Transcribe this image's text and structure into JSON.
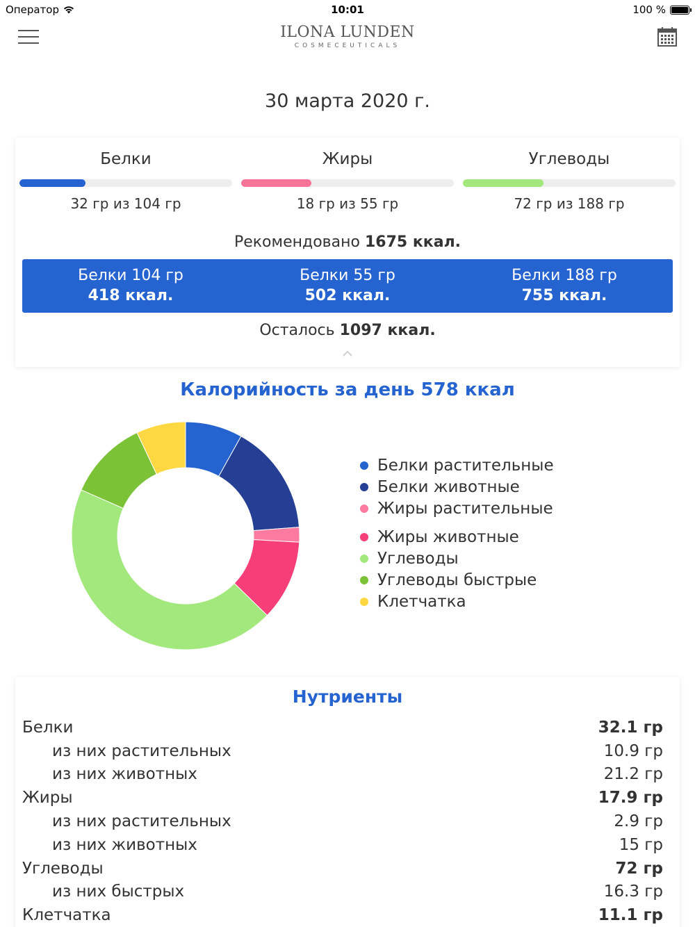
{
  "status_bar": {
    "carrier": "Оператор",
    "time": "10:01",
    "battery": "100 %"
  },
  "header": {
    "logo_main": "ILONA LUNDEN",
    "logo_sub": "COSMECEUTICALS"
  },
  "date": "30 марта 2020 г.",
  "macros": [
    {
      "label": "Белки",
      "amount": "32 гр из 104 гр",
      "progress": 0.31,
      "color": "#2563d0"
    },
    {
      "label": "Жиры",
      "amount": "18 гр из 55 гр",
      "progress": 0.33,
      "color": "#f87399"
    },
    {
      "label": "Углеводы",
      "amount": "72 гр из 188 гр",
      "progress": 0.38,
      "color": "#a2e87c"
    }
  ],
  "recommended": {
    "prefix": "Рекомендовано",
    "value": "1675 ккал."
  },
  "targets": [
    {
      "line1": "Белки 104 гр",
      "line2": "418 ккал."
    },
    {
      "line1": "Белки 55 гр",
      "line2": "502 ккал."
    },
    {
      "line1": "Белки 188 гр",
      "line2": "755 ккал."
    }
  ],
  "remaining": {
    "prefix": "Осталось",
    "value": "1097 ккал."
  },
  "day_calories_title": "Калорийность за день 578 ккал",
  "chart_data": {
    "type": "pie",
    "donut": true,
    "categories": [
      "Белки растительные",
      "Белки животные",
      "Жиры растительные",
      "Жиры животные",
      "Углеводы",
      "Углеводы быстрые",
      "Клетчатка"
    ],
    "values": [
      8.1,
      15.7,
      2.1,
      11.4,
      44.3,
      11.4,
      7.0
    ],
    "colors": [
      "#2563d0",
      "#243f94",
      "#fc7a9f",
      "#f63f78",
      "#a2e87c",
      "#7cc236",
      "#fed843"
    ],
    "legend_position": "right"
  },
  "nutrients": {
    "title": "Нутриенты",
    "rows": [
      {
        "label": "Белки",
        "value": "32.1 гр",
        "type": "main"
      },
      {
        "label": "из них растительных",
        "value": "10.9 гр",
        "type": "sub"
      },
      {
        "label": "из них животных",
        "value": "21.2 гр",
        "type": "sub"
      },
      {
        "label": "Жиры",
        "value": "17.9 гр",
        "type": "main"
      },
      {
        "label": "из них растительных",
        "value": "2.9 гр",
        "type": "sub"
      },
      {
        "label": "из них животных",
        "value": "15 гр",
        "type": "sub"
      },
      {
        "label": "Углеводы",
        "value": "72 гр",
        "type": "main"
      },
      {
        "label": "из них быстрых",
        "value": "16.3 гр",
        "type": "sub"
      },
      {
        "label": "Клетчатка",
        "value": "11.1 гр",
        "type": "main"
      }
    ]
  }
}
